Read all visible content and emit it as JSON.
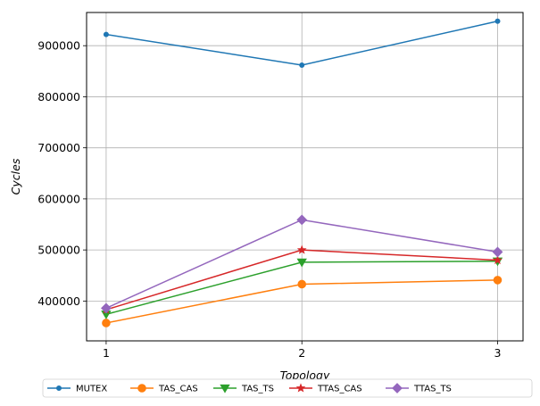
{
  "chart_data": {
    "type": "line",
    "xlabel": "Topology",
    "ylabel": "Cycles",
    "x": [
      1,
      2,
      3
    ],
    "xticks": [
      "1",
      "2",
      "3"
    ],
    "xlim": [
      0.9,
      3.13
    ],
    "ylim": [
      322000,
      965000
    ],
    "yticks": [
      400000,
      500000,
      600000,
      700000,
      800000,
      900000
    ],
    "ytick_labels": [
      "400000",
      "500000",
      "600000",
      "700000",
      "800000",
      "900000"
    ],
    "grid": true,
    "legend_position": "bottom, outside plot, single row",
    "series": [
      {
        "name": "MUTEX",
        "values": [
          922000,
          862000,
          948000
        ],
        "color": "#1f77b4",
        "marker": "point"
      },
      {
        "name": "TAS_CAS",
        "values": [
          357000,
          433000,
          441000
        ],
        "color": "#ff7f0e",
        "marker": "circle"
      },
      {
        "name": "TAS_TS",
        "values": [
          374000,
          476000,
          478000
        ],
        "color": "#2ca02c",
        "marker": "triangle-down"
      },
      {
        "name": "TTAS_CAS",
        "values": [
          383000,
          500000,
          480000
        ],
        "color": "#d62728",
        "marker": "star"
      },
      {
        "name": "TTAS_TS",
        "values": [
          386000,
          559000,
          496000
        ],
        "color": "#9467bd",
        "marker": "diamond"
      }
    ]
  }
}
